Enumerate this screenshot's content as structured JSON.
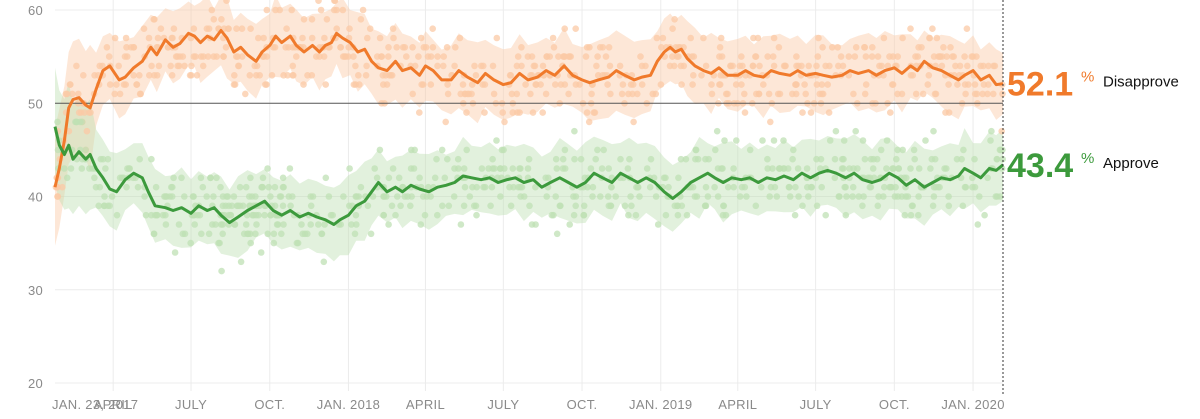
{
  "chart_data": {
    "type": "line",
    "title": "",
    "xlabel": "",
    "ylabel": "",
    "ylim": [
      20,
      60
    ],
    "y_ticks": [
      20,
      30,
      40,
      50,
      60
    ],
    "reference_line": 50,
    "grid": true,
    "x_start": "2017-01-23",
    "x_end": "2020-02-05",
    "x_ticks": [
      {
        "date": "2017-01-23",
        "label": "JAN. 23, 2017"
      },
      {
        "date": "2017-04-01",
        "label": "APRIL"
      },
      {
        "date": "2017-07-01",
        "label": "JULY"
      },
      {
        "date": "2017-10-01",
        "label": "OCT."
      },
      {
        "date": "2018-01-01",
        "label": "JAN. 2018"
      },
      {
        "date": "2018-04-01",
        "label": "APRIL"
      },
      {
        "date": "2018-07-01",
        "label": "JULY"
      },
      {
        "date": "2018-10-01",
        "label": "OCT."
      },
      {
        "date": "2019-01-01",
        "label": "JAN. 2019"
      },
      {
        "date": "2019-04-01",
        "label": "APRIL"
      },
      {
        "date": "2019-07-01",
        "label": "JULY"
      },
      {
        "date": "2019-10-01",
        "label": "OCT."
      },
      {
        "date": "2020-01-01",
        "label": "JAN. 2020"
      }
    ],
    "series": [
      {
        "name": "Disapprove",
        "color": "#f07a2b",
        "light_color": "#fbc9a6",
        "end_value": "52.1",
        "points": [
          [
            "2017-01-23",
            41.0
          ],
          [
            "2017-01-28",
            43.0
          ],
          [
            "2017-02-03",
            46.0
          ],
          [
            "2017-02-08",
            49.5
          ],
          [
            "2017-02-13",
            50.4
          ],
          [
            "2017-02-20",
            50.6
          ],
          [
            "2017-02-28",
            49.8
          ],
          [
            "2017-03-05",
            49.5
          ],
          [
            "2017-03-12",
            51.5
          ],
          [
            "2017-03-20",
            53.5
          ],
          [
            "2017-03-28",
            54.0
          ],
          [
            "2017-04-08",
            52.5
          ],
          [
            "2017-04-15",
            52.8
          ],
          [
            "2017-04-25",
            53.8
          ],
          [
            "2017-05-05",
            54.5
          ],
          [
            "2017-05-15",
            56.0
          ],
          [
            "2017-05-22",
            55.2
          ],
          [
            "2017-06-01",
            56.8
          ],
          [
            "2017-06-10",
            56.0
          ],
          [
            "2017-06-18",
            56.4
          ],
          [
            "2017-06-28",
            57.5
          ],
          [
            "2017-07-05",
            57.2
          ],
          [
            "2017-07-12",
            56.5
          ],
          [
            "2017-07-20",
            57.2
          ],
          [
            "2017-07-28",
            56.8
          ],
          [
            "2017-08-05",
            57.8
          ],
          [
            "2017-08-12",
            57.0
          ],
          [
            "2017-08-20",
            55.5
          ],
          [
            "2017-08-28",
            56.0
          ],
          [
            "2017-09-05",
            55.2
          ],
          [
            "2017-09-15",
            54.5
          ],
          [
            "2017-09-22",
            55.5
          ],
          [
            "2017-10-01",
            56.2
          ],
          [
            "2017-10-08",
            57.2
          ],
          [
            "2017-10-15",
            56.5
          ],
          [
            "2017-10-25",
            57.2
          ],
          [
            "2017-11-01",
            56.2
          ],
          [
            "2017-11-10",
            55.5
          ],
          [
            "2017-11-20",
            56.2
          ],
          [
            "2017-11-28",
            55.5
          ],
          [
            "2017-12-05",
            56.2
          ],
          [
            "2017-12-12",
            56.5
          ],
          [
            "2017-12-18",
            57.5
          ],
          [
            "2017-12-25",
            57.0
          ],
          [
            "2018-01-03",
            56.5
          ],
          [
            "2018-01-12",
            55.5
          ],
          [
            "2018-01-20",
            55.8
          ],
          [
            "2018-01-28",
            54.5
          ],
          [
            "2018-02-05",
            53.8
          ],
          [
            "2018-02-15",
            53.5
          ],
          [
            "2018-02-25",
            54.5
          ],
          [
            "2018-03-05",
            53.5
          ],
          [
            "2018-03-15",
            53.8
          ],
          [
            "2018-03-25",
            53.0
          ],
          [
            "2018-04-01",
            54.0
          ],
          [
            "2018-04-10",
            53.5
          ],
          [
            "2018-04-20",
            52.5
          ],
          [
            "2018-05-01",
            52.5
          ],
          [
            "2018-05-10",
            53.5
          ],
          [
            "2018-05-20",
            52.8
          ],
          [
            "2018-06-01",
            52.2
          ],
          [
            "2018-06-10",
            53.2
          ],
          [
            "2018-06-20",
            52.5
          ],
          [
            "2018-07-01",
            52.0
          ],
          [
            "2018-07-10",
            52.2
          ],
          [
            "2018-07-20",
            53.2
          ],
          [
            "2018-07-30",
            52.5
          ],
          [
            "2018-08-10",
            52.8
          ],
          [
            "2018-08-20",
            53.5
          ],
          [
            "2018-08-30",
            53.0
          ],
          [
            "2018-09-10",
            54.0
          ],
          [
            "2018-09-20",
            53.0
          ],
          [
            "2018-10-01",
            52.5
          ],
          [
            "2018-10-10",
            52.2
          ],
          [
            "2018-10-20",
            52.5
          ],
          [
            "2018-11-01",
            52.8
          ],
          [
            "2018-11-10",
            53.5
          ],
          [
            "2018-11-20",
            53.0
          ],
          [
            "2018-12-01",
            52.5
          ],
          [
            "2018-12-10",
            52.8
          ],
          [
            "2018-12-20",
            53.0
          ],
          [
            "2018-12-28",
            54.5
          ],
          [
            "2019-01-05",
            55.5
          ],
          [
            "2019-01-12",
            56.0
          ],
          [
            "2019-01-18",
            55.5
          ],
          [
            "2019-01-25",
            55.8
          ],
          [
            "2019-02-01",
            54.8
          ],
          [
            "2019-02-10",
            54.0
          ],
          [
            "2019-02-20",
            53.5
          ],
          [
            "2019-03-01",
            53.2
          ],
          [
            "2019-03-10",
            53.8
          ],
          [
            "2019-03-20",
            53.0
          ],
          [
            "2019-04-01",
            53.0
          ],
          [
            "2019-04-10",
            53.5
          ],
          [
            "2019-04-20",
            53.0
          ],
          [
            "2019-05-01",
            52.8
          ],
          [
            "2019-05-10",
            53.5
          ],
          [
            "2019-05-20",
            53.2
          ],
          [
            "2019-06-01",
            53.0
          ],
          [
            "2019-06-10",
            53.5
          ],
          [
            "2019-06-20",
            53.0
          ],
          [
            "2019-07-01",
            53.2
          ],
          [
            "2019-07-10",
            53.0
          ],
          [
            "2019-07-20",
            52.8
          ],
          [
            "2019-08-01",
            53.0
          ],
          [
            "2019-08-10",
            53.5
          ],
          [
            "2019-08-20",
            53.2
          ],
          [
            "2019-09-01",
            53.5
          ],
          [
            "2019-09-10",
            53.0
          ],
          [
            "2019-09-20",
            53.5
          ],
          [
            "2019-10-01",
            53.8
          ],
          [
            "2019-10-10",
            53.2
          ],
          [
            "2019-10-20",
            54.0
          ],
          [
            "2019-10-28",
            53.5
          ],
          [
            "2019-11-05",
            54.5
          ],
          [
            "2019-11-15",
            53.8
          ],
          [
            "2019-11-25",
            53.5
          ],
          [
            "2019-12-05",
            53.0
          ],
          [
            "2019-12-15",
            52.5
          ],
          [
            "2019-12-22",
            53.0
          ],
          [
            "2020-01-01",
            53.5
          ],
          [
            "2020-01-10",
            52.5
          ],
          [
            "2020-01-20",
            53.0
          ],
          [
            "2020-01-28",
            52.0
          ],
          [
            "2020-02-05",
            52.1
          ]
        ]
      },
      {
        "name": "Approve",
        "color": "#3c9a3c",
        "light_color": "#bfe0b4",
        "end_value": "43.4",
        "points": [
          [
            "2017-01-23",
            47.5
          ],
          [
            "2017-01-28",
            45.5
          ],
          [
            "2017-02-03",
            44.5
          ],
          [
            "2017-02-08",
            45.5
          ],
          [
            "2017-02-13",
            44.0
          ],
          [
            "2017-02-20",
            44.8
          ],
          [
            "2017-02-28",
            44.0
          ],
          [
            "2017-03-05",
            44.5
          ],
          [
            "2017-03-12",
            43.0
          ],
          [
            "2017-03-20",
            42.0
          ],
          [
            "2017-03-28",
            40.8
          ],
          [
            "2017-04-05",
            40.5
          ],
          [
            "2017-04-15",
            41.8
          ],
          [
            "2017-04-25",
            42.5
          ],
          [
            "2017-05-05",
            42.0
          ],
          [
            "2017-05-12",
            40.5
          ],
          [
            "2017-05-20",
            39.0
          ],
          [
            "2017-06-01",
            38.8
          ],
          [
            "2017-06-10",
            38.5
          ],
          [
            "2017-06-20",
            38.8
          ],
          [
            "2017-07-01",
            38.2
          ],
          [
            "2017-07-10",
            39.0
          ],
          [
            "2017-07-20",
            38.5
          ],
          [
            "2017-07-28",
            38.8
          ],
          [
            "2017-08-05",
            38.0
          ],
          [
            "2017-08-15",
            37.2
          ],
          [
            "2017-08-25",
            37.8
          ],
          [
            "2017-09-05",
            38.5
          ],
          [
            "2017-09-15",
            39.0
          ],
          [
            "2017-09-25",
            39.5
          ],
          [
            "2017-10-05",
            38.5
          ],
          [
            "2017-10-15",
            38.0
          ],
          [
            "2017-10-25",
            38.5
          ],
          [
            "2017-11-05",
            37.8
          ],
          [
            "2017-11-15",
            38.2
          ],
          [
            "2017-11-25",
            37.8
          ],
          [
            "2017-12-05",
            37.5
          ],
          [
            "2017-12-15",
            37.0
          ],
          [
            "2017-12-22",
            37.5
          ],
          [
            "2018-01-01",
            38.0
          ],
          [
            "2018-01-10",
            39.0
          ],
          [
            "2018-01-20",
            39.5
          ],
          [
            "2018-01-28",
            40.5
          ],
          [
            "2018-02-05",
            41.5
          ],
          [
            "2018-02-15",
            40.5
          ],
          [
            "2018-02-25",
            41.0
          ],
          [
            "2018-03-05",
            40.5
          ],
          [
            "2018-03-15",
            41.2
          ],
          [
            "2018-03-25",
            40.8
          ],
          [
            "2018-04-05",
            40.5
          ],
          [
            "2018-04-15",
            41.0
          ],
          [
            "2018-04-25",
            41.2
          ],
          [
            "2018-05-05",
            41.5
          ],
          [
            "2018-05-15",
            42.2
          ],
          [
            "2018-05-25",
            42.0
          ],
          [
            "2018-06-05",
            41.8
          ],
          [
            "2018-06-15",
            42.0
          ],
          [
            "2018-06-25",
            41.5
          ],
          [
            "2018-07-05",
            41.8
          ],
          [
            "2018-07-15",
            42.0
          ],
          [
            "2018-07-25",
            41.5
          ],
          [
            "2018-08-05",
            41.8
          ],
          [
            "2018-08-15",
            41.0
          ],
          [
            "2018-08-25",
            41.5
          ],
          [
            "2018-09-05",
            42.0
          ],
          [
            "2018-09-15",
            41.5
          ],
          [
            "2018-09-25",
            41.0
          ],
          [
            "2018-10-05",
            41.5
          ],
          [
            "2018-10-15",
            42.5
          ],
          [
            "2018-10-25",
            42.0
          ],
          [
            "2018-11-05",
            41.5
          ],
          [
            "2018-11-15",
            42.5
          ],
          [
            "2018-11-25",
            42.0
          ],
          [
            "2018-12-05",
            41.5
          ],
          [
            "2018-12-15",
            42.0
          ],
          [
            "2018-12-25",
            41.5
          ],
          [
            "2019-01-05",
            40.5
          ],
          [
            "2019-01-15",
            39.8
          ],
          [
            "2019-01-25",
            40.5
          ],
          [
            "2019-02-05",
            41.5
          ],
          [
            "2019-02-15",
            42.0
          ],
          [
            "2019-02-25",
            42.5
          ],
          [
            "2019-03-05",
            42.0
          ],
          [
            "2019-03-15",
            41.5
          ],
          [
            "2019-03-25",
            42.0
          ],
          [
            "2019-04-05",
            41.8
          ],
          [
            "2019-04-15",
            42.0
          ],
          [
            "2019-04-25",
            41.5
          ],
          [
            "2019-05-05",
            42.0
          ],
          [
            "2019-05-15",
            41.8
          ],
          [
            "2019-05-25",
            42.2
          ],
          [
            "2019-06-05",
            41.8
          ],
          [
            "2019-06-15",
            42.5
          ],
          [
            "2019-06-25",
            42.0
          ],
          [
            "2019-07-05",
            42.5
          ],
          [
            "2019-07-15",
            42.8
          ],
          [
            "2019-07-25",
            42.5
          ],
          [
            "2019-08-05",
            42.0
          ],
          [
            "2019-08-15",
            42.5
          ],
          [
            "2019-08-25",
            41.8
          ],
          [
            "2019-09-05",
            41.5
          ],
          [
            "2019-09-15",
            41.8
          ],
          [
            "2019-09-25",
            42.5
          ],
          [
            "2019-10-05",
            42.0
          ],
          [
            "2019-10-15",
            41.2
          ],
          [
            "2019-10-25",
            41.8
          ],
          [
            "2019-11-05",
            41.0
          ],
          [
            "2019-11-15",
            41.5
          ],
          [
            "2019-11-25",
            42.0
          ],
          [
            "2019-12-05",
            41.8
          ],
          [
            "2019-12-15",
            42.2
          ],
          [
            "2019-12-22",
            43.0
          ],
          [
            "2020-01-01",
            42.5
          ],
          [
            "2020-01-10",
            42.0
          ],
          [
            "2020-01-20",
            43.0
          ],
          [
            "2020-01-28",
            42.8
          ],
          [
            "2020-02-05",
            43.4
          ]
        ]
      }
    ]
  }
}
